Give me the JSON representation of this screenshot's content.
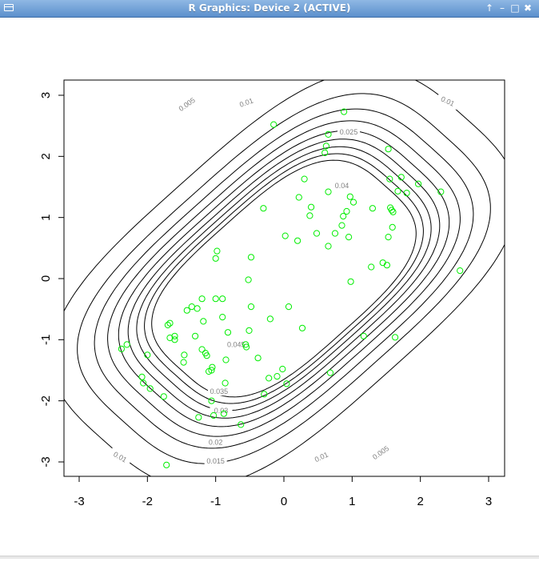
{
  "window": {
    "title": "R Graphics: Device 2 (ACTIVE)",
    "buttons": [
      {
        "name": "restore-up-button",
        "glyph": "↑"
      },
      {
        "name": "minimize-button",
        "glyph": "–"
      },
      {
        "name": "maximize-button",
        "glyph": "□"
      },
      {
        "name": "close-button",
        "glyph": "✖"
      }
    ]
  },
  "chart_data": {
    "type": "scatter",
    "xlim": [
      -3.2,
      3.2
    ],
    "ylim": [
      -3.25,
      3.25
    ],
    "x_ticks": [
      -3,
      -2,
      -1,
      0,
      1,
      2,
      3
    ],
    "y_ticks": [
      -3,
      -2,
      -1,
      0,
      1,
      2,
      3
    ],
    "x_tick_labels": [
      "-3",
      "-2",
      "-1",
      "0",
      "1",
      "2",
      "3"
    ],
    "y_tick_labels": [
      "-3",
      "-2",
      "-1",
      "0",
      "1",
      "2",
      "3"
    ],
    "grid": false,
    "point_color": "#00ee00",
    "contour_color": "#000000",
    "contour_label_color": "#808080",
    "contour_levels": [
      "0.005",
      "0.01",
      "0.015",
      "0.02",
      "0.025",
      "0.03",
      "0.035",
      "0.04",
      "0.045"
    ],
    "points": [
      [
        -0.15,
        2.52
      ],
      [
        0.88,
        2.73
      ],
      [
        0.65,
        2.36
      ],
      [
        0.62,
        2.17
      ],
      [
        0.6,
        2.06
      ],
      [
        1.53,
        2.12
      ],
      [
        0.3,
        1.63
      ],
      [
        1.55,
        1.63
      ],
      [
        1.72,
        1.66
      ],
      [
        1.97,
        1.55
      ],
      [
        1.67,
        1.43
      ],
      [
        1.8,
        1.4
      ],
      [
        2.3,
        1.42
      ],
      [
        0.65,
        1.42
      ],
      [
        0.97,
        1.34
      ],
      [
        0.22,
        1.33
      ],
      [
        1.02,
        1.25
      ],
      [
        -0.3,
        1.15
      ],
      [
        0.4,
        1.17
      ],
      [
        1.3,
        1.15
      ],
      [
        1.56,
        1.16
      ],
      [
        1.6,
        1.09
      ],
      [
        0.92,
        1.1
      ],
      [
        0.38,
        1.03
      ],
      [
        0.87,
        1.02
      ],
      [
        1.58,
        1.12
      ],
      [
        0.85,
        0.87
      ],
      [
        1.59,
        0.84
      ],
      [
        0.48,
        0.74
      ],
      [
        0.75,
        0.74
      ],
      [
        0.95,
        0.68
      ],
      [
        1.53,
        0.68
      ],
      [
        0.02,
        0.7
      ],
      [
        0.2,
        0.62
      ],
      [
        0.65,
        0.53
      ],
      [
        -0.98,
        0.45
      ],
      [
        -1.0,
        0.33
      ],
      [
        -0.48,
        0.35
      ],
      [
        1.45,
        0.26
      ],
      [
        1.28,
        0.19
      ],
      [
        1.51,
        0.22
      ],
      [
        2.58,
        0.13
      ],
      [
        -0.52,
        -0.02
      ],
      [
        0.98,
        -0.05
      ],
      [
        -1.2,
        -0.33
      ],
      [
        -1.35,
        -0.46
      ],
      [
        -1.0,
        -0.33
      ],
      [
        -0.9,
        -0.33
      ],
      [
        -0.48,
        -0.46
      ],
      [
        0.07,
        -0.46
      ],
      [
        -1.42,
        -0.52
      ],
      [
        -1.27,
        -0.49
      ],
      [
        -0.9,
        -0.63
      ],
      [
        -0.2,
        -0.66
      ],
      [
        -1.18,
        -0.7
      ],
      [
        -1.67,
        -0.73
      ],
      [
        -1.7,
        -0.76
      ],
      [
        0.27,
        -0.81
      ],
      [
        -0.51,
        -0.85
      ],
      [
        -0.82,
        -0.88
      ],
      [
        -1.3,
        -0.94
      ],
      [
        -1.6,
        -0.94
      ],
      [
        -1.67,
        -0.97
      ],
      [
        -1.6,
        -1.0
      ],
      [
        1.17,
        -0.94
      ],
      [
        1.63,
        -0.96
      ],
      [
        -0.56,
        -1.08
      ],
      [
        -0.55,
        -1.12
      ],
      [
        -1.2,
        -1.16
      ],
      [
        -2.3,
        -1.08
      ],
      [
        -2.38,
        -1.15
      ],
      [
        -1.46,
        -1.25
      ],
      [
        -1.15,
        -1.22
      ],
      [
        -1.13,
        -1.26
      ],
      [
        -2.0,
        -1.25
      ],
      [
        -0.38,
        -1.3
      ],
      [
        -1.47,
        -1.37
      ],
      [
        -0.85,
        -1.33
      ],
      [
        -1.05,
        -1.45
      ],
      [
        -1.06,
        -1.5
      ],
      [
        -1.1,
        -1.52
      ],
      [
        -0.02,
        -1.48
      ],
      [
        0.68,
        -1.54
      ],
      [
        -2.08,
        -1.61
      ],
      [
        -0.1,
        -1.6
      ],
      [
        -0.22,
        -1.63
      ],
      [
        -2.06,
        -1.71
      ],
      [
        -0.86,
        -1.71
      ],
      [
        0.04,
        -1.72
      ],
      [
        -1.96,
        -1.8
      ],
      [
        -0.29,
        -1.89
      ],
      [
        -1.76,
        -1.93
      ],
      [
        -1.06,
        -2.0
      ],
      [
        -0.88,
        -2.21
      ],
      [
        -1.03,
        -2.24
      ],
      [
        -1.25,
        -2.27
      ],
      [
        -0.63,
        -2.39
      ],
      [
        -1.72,
        -3.05
      ]
    ]
  }
}
